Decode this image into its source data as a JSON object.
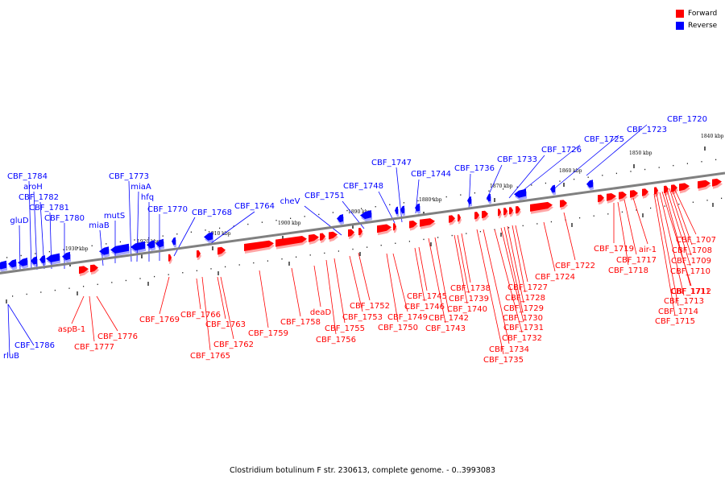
{
  "legend": [
    {
      "label": "Forward",
      "color": "#ff0000"
    },
    {
      "label": "Reverse",
      "color": "#0000ff"
    }
  ],
  "caption": "Clostridium botulinum F str. 230613, complete genome. - 0..3993083",
  "colors": {
    "forward": "#ff0000",
    "reverse": "#0000ff",
    "axis": "#808080"
  },
  "ticks": [
    "1840 kbp",
    "1850 kbp",
    "1860 kbp",
    "1870 kbp",
    "1880 kbp",
    "1890 kbp",
    "1900 kbp",
    "1910 kbp",
    "1920 kbp",
    "1930 kbp"
  ],
  "reverse_labels": [
    "CBF_1720",
    "CBF_1723",
    "CBF_1725",
    "CBF_1726",
    "CBF_1733",
    "CBF_1736",
    "CBF_1744",
    "CBF_1747",
    "CBF_1748",
    "CBF_1751",
    "cheV",
    "CBF_1764",
    "CBF_1768",
    "CBF_1770",
    "hfq",
    "miaA",
    "CBF_1773",
    "mutS",
    "miaB",
    "CBF_1780",
    "CBF_1781",
    "CBF_1782",
    "aroH",
    "CBF_1784",
    "gluD",
    "CBF_1786",
    "rluB"
  ],
  "forward_labels": [
    "CBF_1707",
    "CBF_1708",
    "CBF_1709",
    "CBF_1710",
    "CBF_1711",
    "CBF_1712",
    "CBF_1713",
    "CBF_1714",
    "CBF_1715",
    "air-1",
    "CBF_1717",
    "CBF_1718",
    "CBF_1719",
    "CBF_1722",
    "CBF_1724",
    "CBF_1727",
    "CBF_1728",
    "CBF_1729",
    "CBF_1730",
    "CBF_1731",
    "CBF_1732",
    "CBF_1734",
    "CBF_1735",
    "CBF_1738",
    "CBF_1739",
    "CBF_1740",
    "CBF_1742",
    "CBF_1743",
    "CBF_1745",
    "CBF_1746",
    "CBF_1749",
    "CBF_1750",
    "CBF_1752",
    "CBF_1753",
    "CBF_1755",
    "CBF_1756",
    "deaD",
    "CBF_1758",
    "CBF_1759",
    "CBF_1762",
    "CBF_1763",
    "CBF_1765",
    "CBF_1766",
    "CBF_1769",
    "CBF_1776",
    "CBF_1777",
    "aspB-1"
  ]
}
